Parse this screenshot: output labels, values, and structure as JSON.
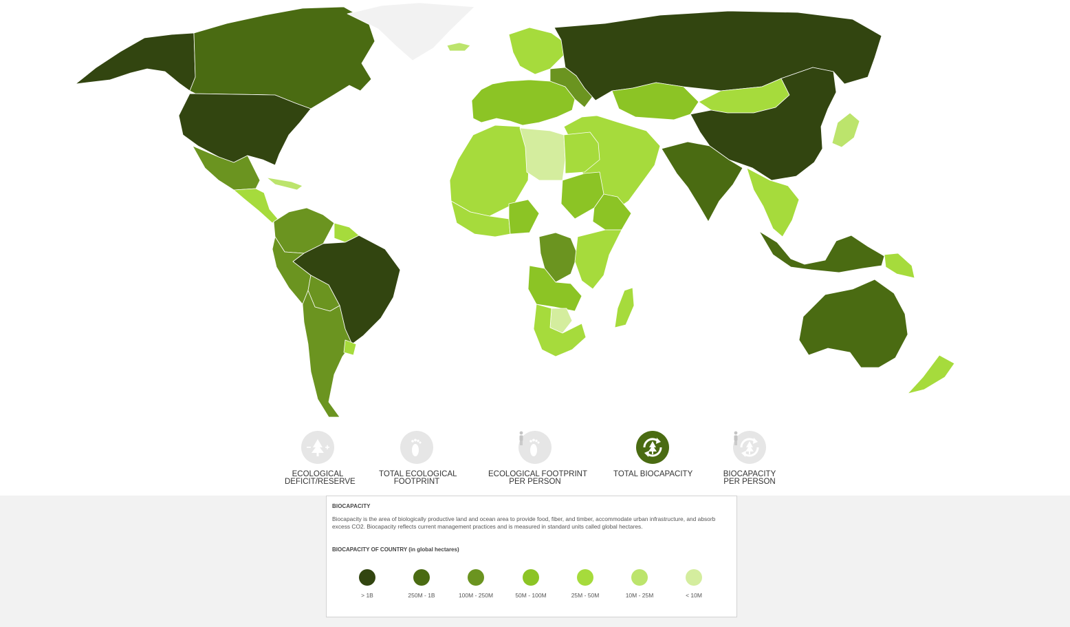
{
  "map": {
    "levels": {
      "gt1b": "#324510",
      "l250m_1b": "#4a6b12",
      "l100m_250m": "#6b9420",
      "l50m_100m": "#8cc425",
      "l25m_50m": "#a6db3c",
      "l10m_25m": "#bce46c",
      "lt10m": "#d4ed9e",
      "nodata": "#f2f2f2"
    },
    "regions": [
      {
        "name": "Alaska",
        "level": "gt1b"
      },
      {
        "name": "Canada",
        "level": "l250m_1b"
      },
      {
        "name": "United States",
        "level": "gt1b"
      },
      {
        "name": "Mexico",
        "level": "l100m_250m"
      },
      {
        "name": "Central America",
        "level": "l25m_50m"
      },
      {
        "name": "Caribbean",
        "level": "l10m_25m"
      },
      {
        "name": "Greenland",
        "level": "nodata"
      },
      {
        "name": "Iceland",
        "level": "l10m_25m"
      },
      {
        "name": "Colombia / Venezuela",
        "level": "l100m_250m"
      },
      {
        "name": "Guianas",
        "level": "l25m_50m"
      },
      {
        "name": "Brazil",
        "level": "gt1b"
      },
      {
        "name": "Peru",
        "level": "l100m_250m"
      },
      {
        "name": "Bolivia",
        "level": "l100m_250m"
      },
      {
        "name": "Argentina / Chile",
        "level": "l100m_250m"
      },
      {
        "name": "Uruguay",
        "level": "l25m_50m"
      },
      {
        "name": "Western Europe",
        "level": "l50m_100m"
      },
      {
        "name": "Scandinavia",
        "level": "l25m_50m"
      },
      {
        "name": "Eastern Europe",
        "level": "l100m_250m"
      },
      {
        "name": "Russia",
        "level": "gt1b"
      },
      {
        "name": "Kazakhstan",
        "level": "l50m_100m"
      },
      {
        "name": "Mongolia",
        "level": "l25m_50m"
      },
      {
        "name": "China",
        "level": "gt1b"
      },
      {
        "name": "Middle East",
        "level": "l25m_50m"
      },
      {
        "name": "India",
        "level": "l250m_1b"
      },
      {
        "name": "Southeast Asia",
        "level": "l25m_50m"
      },
      {
        "name": "Japan",
        "level": "l10m_25m"
      },
      {
        "name": "Indonesia",
        "level": "l250m_1b"
      },
      {
        "name": "Papua New Guinea",
        "level": "l25m_50m"
      },
      {
        "name": "Australia",
        "level": "l250m_1b"
      },
      {
        "name": "New Zealand",
        "level": "l25m_50m"
      },
      {
        "name": "North Africa",
        "level": "l25m_50m"
      },
      {
        "name": "Libya",
        "level": "lt10m"
      },
      {
        "name": "Egypt",
        "level": "l25m_50m"
      },
      {
        "name": "Sudan",
        "level": "l50m_100m"
      },
      {
        "name": "Ethiopia",
        "level": "l50m_100m"
      },
      {
        "name": "West Africa",
        "level": "l25m_50m"
      },
      {
        "name": "Nigeria",
        "level": "l50m_100m"
      },
      {
        "name": "DR Congo",
        "level": "l100m_250m"
      },
      {
        "name": "East Africa",
        "level": "l25m_50m"
      },
      {
        "name": "Angola / Zambia",
        "level": "l50m_100m"
      },
      {
        "name": "Botswana",
        "level": "lt10m"
      },
      {
        "name": "Southern Africa",
        "level": "l25m_50m"
      },
      {
        "name": "Madagascar",
        "level": "l25m_50m"
      }
    ]
  },
  "tabs": [
    {
      "line1": "ECOLOGICAL",
      "line2": "DEFICIT/RESERVE",
      "active": false,
      "icon": "tree-plus-minus-icon"
    },
    {
      "line1": "TOTAL ECOLOGICAL",
      "line2": "FOOTPRINT",
      "active": false,
      "icon": "footprint-icon"
    },
    {
      "line1": "ECOLOGICAL FOOTPRINT",
      "line2": "PER PERSON",
      "active": false,
      "icon": "footprint-person-icon"
    },
    {
      "line1": "TOTAL BIOCAPACITY",
      "line2": "",
      "active": true,
      "icon": "biocapacity-cycle-icon"
    },
    {
      "line1": "BIOCAPACITY",
      "line2": "PER PERSON",
      "active": false,
      "icon": "biocapacity-person-icon"
    }
  ],
  "panel": {
    "title": "BIOCAPACITY",
    "description": "Biocapacity is the area of biologically productive land and ocean area to provide food, fiber, and timber, accommodate urban infrastructure, and absorb excess CO2. Biocapacity reflects current management practices and is measured in standard units called global hectares.",
    "scale_title": "BIOCAPACITY OF COUNTRY (in global hectares)",
    "legend": [
      {
        "label": "> 1B",
        "color": "#324510"
      },
      {
        "label": "250M - 1B",
        "color": "#4a6b12"
      },
      {
        "label": "100M - 250M",
        "color": "#6b9420"
      },
      {
        "label": "50M - 100M",
        "color": "#8cc425"
      },
      {
        "label": "25M - 50M",
        "color": "#a6db3c"
      },
      {
        "label": "10M - 25M",
        "color": "#bce46c"
      },
      {
        "label": "< 10M",
        "color": "#d4ed9e"
      }
    ]
  }
}
